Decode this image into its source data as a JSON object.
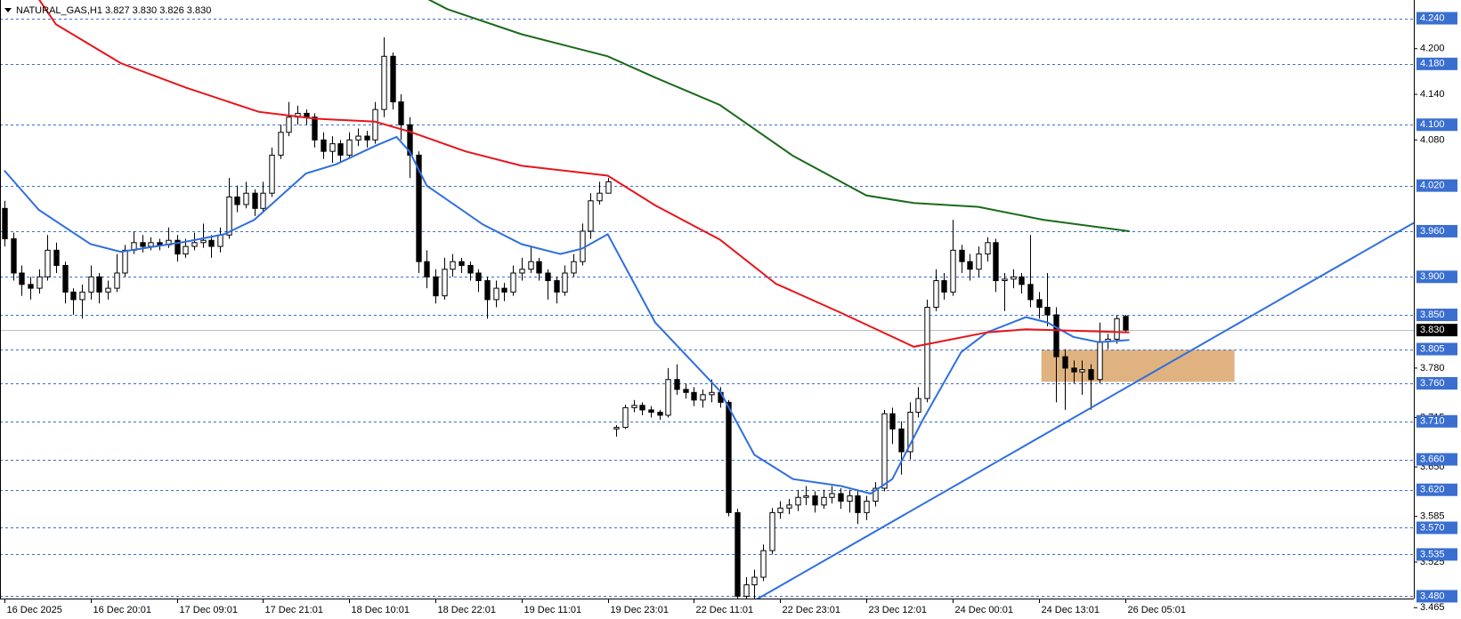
{
  "chart_data": {
    "type": "candlestick",
    "title": "NATURAL_GAS,H1  3.827 3.830 3.826 3.830",
    "xlim": [
      -0.5,
      163.5
    ],
    "ylim": [
      3.477,
      4.264
    ],
    "xticks": [
      {
        "value": 0,
        "label": "16 Dec 2025"
      },
      {
        "value": 10,
        "label": "16 Dec 20:01"
      },
      {
        "value": 20,
        "label": "17 Dec 09:01"
      },
      {
        "value": 30,
        "label": "17 Dec 21:01"
      },
      {
        "value": 40,
        "label": "18 Dec 10:01"
      },
      {
        "value": 50,
        "label": "18 Dec 22:01"
      },
      {
        "value": 60,
        "label": "19 Dec 11:01"
      },
      {
        "value": 70,
        "label": "19 Dec 23:01"
      },
      {
        "value": 80,
        "label": "22 Dec 11:01"
      },
      {
        "value": 90,
        "label": "22 Dec 23:01"
      },
      {
        "value": 100,
        "label": "23 Dec 12:01"
      },
      {
        "value": 110,
        "label": "24 Dec 00:01"
      },
      {
        "value": 120,
        "label": "24 Dec 13:01"
      },
      {
        "value": 130,
        "label": "26 Dec 05:01"
      }
    ],
    "yticks": [
      {
        "value": 4.2,
        "label": "4.200"
      },
      {
        "value": 4.14,
        "label": "4.140"
      },
      {
        "value": 4.08,
        "label": "4.080"
      },
      {
        "value": 3.78,
        "label": "3.780"
      },
      3.715,
      {
        "value": 3.65,
        "label": "3.650"
      },
      3.585,
      3.525,
      3.465
    ],
    "levels": [
      {
        "value": 4.24,
        "label": "4.240"
      },
      {
        "value": 4.18,
        "label": "4.180"
      },
      {
        "value": 4.1,
        "label": "4.100"
      },
      {
        "value": 4.02,
        "label": "4.020"
      },
      {
        "value": 3.96,
        "label": "3.960"
      },
      {
        "value": 3.9,
        "label": "3.900"
      },
      {
        "value": 3.85,
        "label": "3.850"
      },
      3.805,
      {
        "value": 3.76,
        "label": "3.760"
      },
      {
        "value": 3.71,
        "label": "3.710"
      },
      {
        "value": 3.66,
        "label": "3.660"
      },
      {
        "value": 3.62,
        "label": "3.620"
      },
      {
        "value": 3.57,
        "label": "3.570"
      },
      3.535,
      {
        "value": 3.48,
        "label": "3.480"
      }
    ],
    "level_color": "#3a6fd0",
    "last_price": {
      "value": 3.83,
      "label": "3.830"
    },
    "up_color": "#ffffff",
    "down_color": "#000000",
    "open": [
      3.99,
      3.95,
      3.905,
      3.89,
      3.885,
      3.9,
      3.935,
      3.915,
      3.88,
      3.87,
      3.88,
      3.9,
      3.88,
      3.885,
      3.905,
      3.935,
      3.945,
      3.94,
      3.945,
      3.942,
      3.948,
      3.93,
      3.94,
      3.945,
      3.948,
      3.94,
      3.955,
      4.005,
      3.995,
      4.01,
      3.99,
      4.01,
      4.06,
      4.09,
      4.11,
      4.115,
      4.11,
      4.08,
      4.065,
      4.075,
      4.06,
      4.08,
      4.085,
      4.08,
      4.12,
      4.19,
      4.13,
      4.1,
      4.06,
      3.92,
      3.9,
      3.875,
      3.91,
      3.92,
      3.915,
      3.905,
      3.895,
      3.87,
      3.885,
      3.88,
      3.905,
      3.91,
      3.92,
      3.905,
      3.895,
      3.88,
      3.905,
      3.92,
      3.96,
      4.0,
      4.01,
      3.7,
      3.702,
      3.728,
      3.731,
      3.725,
      3.722,
      3.718,
      3.765,
      3.752,
      3.748,
      3.738,
      3.745,
      3.748,
      3.735,
      3.59,
      3.48,
      3.495,
      3.505,
      3.54,
      3.59,
      3.596,
      3.6,
      3.61,
      3.612,
      3.6,
      3.61,
      3.615,
      3.605,
      3.612,
      3.59,
      3.605,
      3.622,
      3.72,
      3.7,
      3.67,
      3.722,
      3.74,
      3.86,
      3.895,
      3.88,
      3.935,
      3.92,
      3.91,
      3.93,
      3.945,
      3.895,
      3.897,
      3.9,
      3.89,
      3.87,
      3.86,
      3.85,
      3.795,
      3.78,
      3.775,
      3.778,
      3.765,
      3.815,
      3.818,
      3.848
    ],
    "high": [
      4.0,
      3.958,
      3.915,
      3.9,
      3.91,
      3.955,
      3.945,
      3.92,
      3.885,
      3.89,
      3.915,
      3.905,
      3.895,
      3.93,
      3.942,
      3.96,
      3.955,
      3.952,
      3.95,
      3.965,
      3.955,
      3.95,
      3.958,
      3.97,
      3.955,
      3.965,
      4.03,
      4.02,
      4.025,
      4.015,
      4.025,
      4.07,
      4.1,
      4.13,
      4.125,
      4.12,
      4.115,
      4.09,
      4.085,
      4.08,
      4.09,
      4.095,
      4.092,
      4.13,
      4.215,
      4.195,
      4.14,
      4.11,
      4.065,
      3.935,
      3.91,
      3.925,
      3.93,
      3.925,
      3.92,
      3.91,
      3.9,
      3.895,
      3.892,
      3.915,
      3.925,
      3.94,
      3.925,
      3.91,
      3.9,
      3.915,
      3.93,
      3.97,
      4.01,
      4.025,
      4.03,
      3.705,
      3.732,
      3.738,
      3.735,
      3.73,
      3.725,
      3.78,
      3.785,
      3.76,
      3.755,
      3.752,
      3.765,
      3.755,
      3.738,
      3.595,
      3.505,
      3.515,
      3.548,
      3.596,
      3.605,
      3.608,
      3.62,
      3.625,
      3.618,
      3.62,
      3.625,
      3.622,
      3.62,
      3.618,
      3.612,
      3.63,
      3.725,
      3.728,
      3.71,
      3.735,
      3.755,
      3.87,
      3.91,
      3.905,
      3.975,
      3.942,
      3.93,
      3.94,
      3.952,
      3.95,
      3.905,
      3.91,
      3.905,
      3.955,
      3.88,
      3.905,
      3.86,
      3.805,
      3.79,
      3.79,
      3.785,
      3.84,
      3.825,
      3.85,
      3.85
    ],
    "low": [
      3.94,
      3.895,
      3.875,
      3.87,
      3.878,
      3.895,
      3.905,
      3.865,
      3.85,
      3.845,
      3.87,
      3.865,
      3.87,
      3.88,
      3.9,
      3.93,
      3.932,
      3.935,
      3.935,
      3.938,
      3.92,
      3.925,
      3.935,
      3.938,
      3.925,
      3.932,
      3.95,
      3.985,
      3.99,
      3.98,
      3.985,
      4.005,
      4.055,
      4.085,
      4.1,
      4.1,
      4.07,
      4.055,
      4.05,
      4.05,
      4.055,
      4.072,
      4.07,
      4.075,
      4.11,
      4.12,
      4.08,
      4.03,
      3.905,
      3.885,
      3.865,
      3.87,
      3.9,
      3.905,
      3.895,
      3.88,
      3.845,
      3.86,
      3.868,
      3.875,
      3.895,
      3.905,
      3.895,
      3.87,
      3.865,
      3.875,
      3.9,
      3.915,
      3.95,
      3.995,
      4.01,
      3.69,
      3.7,
      3.722,
      3.718,
      3.715,
      3.712,
      3.715,
      3.745,
      3.74,
      3.73,
      3.728,
      3.735,
      3.728,
      3.585,
      3.476,
      3.465,
      3.475,
      3.5,
      3.535,
      3.582,
      3.588,
      3.592,
      3.6,
      3.59,
      3.595,
      3.602,
      3.595,
      3.59,
      3.575,
      3.58,
      3.598,
      3.618,
      3.68,
      3.64,
      3.66,
      3.715,
      3.735,
      3.855,
      3.87,
      3.875,
      3.905,
      3.895,
      3.9,
      3.92,
      3.88,
      3.855,
      3.885,
      3.878,
      3.86,
      3.845,
      3.835,
      3.735,
      3.725,
      3.76,
      3.745,
      3.725,
      3.76,
      3.805,
      3.812,
      3.826
    ],
    "close": [
      3.95,
      3.905,
      3.89,
      3.885,
      3.9,
      3.935,
      3.915,
      3.88,
      3.87,
      3.88,
      3.9,
      3.88,
      3.885,
      3.905,
      3.935,
      3.945,
      3.94,
      3.945,
      3.942,
      3.948,
      3.93,
      3.94,
      3.945,
      3.948,
      3.94,
      3.955,
      4.005,
      3.995,
      4.01,
      3.99,
      4.01,
      4.06,
      4.09,
      4.11,
      4.115,
      4.11,
      4.08,
      4.065,
      4.075,
      4.06,
      4.08,
      4.085,
      4.08,
      4.12,
      4.19,
      4.13,
      4.1,
      4.06,
      3.92,
      3.9,
      3.875,
      3.91,
      3.92,
      3.915,
      3.905,
      3.895,
      3.87,
      3.885,
      3.88,
      3.905,
      3.91,
      3.92,
      3.905,
      3.895,
      3.88,
      3.905,
      3.92,
      3.96,
      4.0,
      4.01,
      4.025,
      3.702,
      3.728,
      3.731,
      3.725,
      3.722,
      3.718,
      3.765,
      3.752,
      3.748,
      3.738,
      3.745,
      3.748,
      3.735,
      3.59,
      3.48,
      3.495,
      3.505,
      3.54,
      3.59,
      3.596,
      3.6,
      3.61,
      3.612,
      3.6,
      3.61,
      3.615,
      3.605,
      3.612,
      3.59,
      3.605,
      3.622,
      3.72,
      3.7,
      3.67,
      3.722,
      3.74,
      3.86,
      3.895,
      3.88,
      3.935,
      3.92,
      3.91,
      3.93,
      3.945,
      3.895,
      3.897,
      3.9,
      3.89,
      3.87,
      3.86,
      3.85,
      3.795,
      3.78,
      3.775,
      3.778,
      3.765,
      3.815,
      3.818,
      3.845,
      3.83
    ],
    "series": [
      {
        "color": "#2f6fe0",
        "x": [
          0,
          4,
          10,
          13.5,
          21,
          25.5,
          29,
          35,
          38.5,
          43,
          45.5,
          47,
          49,
          55.5,
          60,
          64.5,
          67,
          70,
          75.5,
          83,
          87,
          91.5,
          97,
          100.5,
          103,
          106.5,
          111,
          114,
          118.5,
          121,
          124,
          127,
          130.5
        ],
        "values": [
          4.04,
          3.988,
          3.943,
          3.933,
          3.946,
          3.956,
          3.975,
          4.036,
          4.048,
          4.072,
          4.084,
          4.065,
          4.02,
          3.969,
          3.943,
          3.93,
          3.937,
          3.956,
          3.84,
          3.75,
          3.666,
          3.634,
          3.625,
          3.615,
          3.634,
          3.711,
          3.801,
          3.827,
          3.847,
          3.84,
          3.821,
          3.814,
          3.817
        ]
      },
      {
        "color": "#e8141a",
        "x": [
          4,
          6,
          13.5,
          21,
          29.5,
          36,
          43,
          47,
          53.5,
          60,
          70,
          75.5,
          83,
          89.5,
          97,
          105.5,
          114,
          118.5,
          130.5
        ],
        "values": [
          4.265,
          4.232,
          4.181,
          4.149,
          4.117,
          4.108,
          4.104,
          4.091,
          4.065,
          4.046,
          4.033,
          3.994,
          3.949,
          3.891,
          3.853,
          3.808,
          3.827,
          3.831,
          3.827
        ]
      },
      {
        "color": "#1a6b1a",
        "x": [
          49,
          51.4,
          60,
          70,
          75.5,
          83,
          91.5,
          100,
          105.5,
          113,
          120.5,
          130.5
        ],
        "values": [
          4.266,
          4.252,
          4.219,
          4.19,
          4.162,
          4.126,
          4.059,
          4.007,
          3.997,
          3.992,
          3.975,
          3.96
        ]
      }
    ],
    "trendline": {
      "color": "#2f6fe0",
      "x": [
        85.9,
        163.5
      ],
      "y": [
        3.467,
        3.971
      ]
    },
    "zone": {
      "color": "#dfb27f",
      "x": [
        120.3,
        142.7
      ],
      "y": [
        3.762,
        3.804
      ]
    }
  }
}
